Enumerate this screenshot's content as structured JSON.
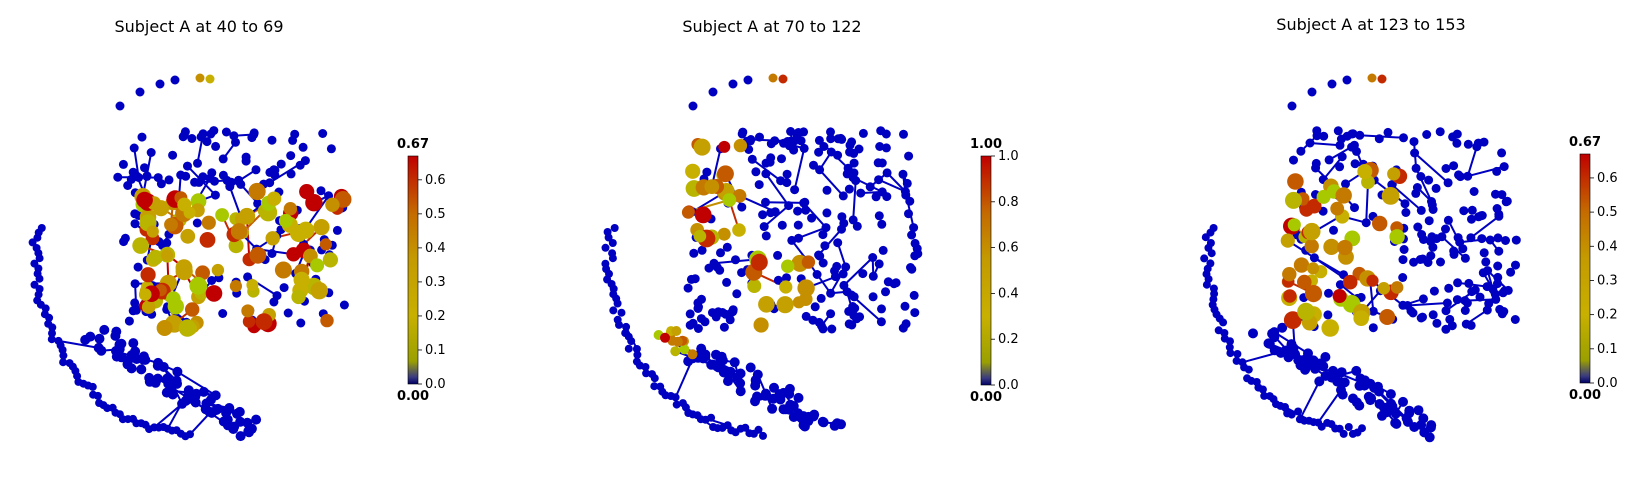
{
  "colors": {
    "background": "#ffffff",
    "low_node": "#0000c0",
    "colormap": [
      "#000066",
      "#8f9f00",
      "#c8b400",
      "#c28a00",
      "#c44a00",
      "#c00000"
    ]
  },
  "panels": [
    {
      "title": "Subject A at 40 to 69",
      "colorbar": {
        "max_label": "0.67",
        "min_label": "0.00",
        "ticks": [
          "0.0",
          "0.1",
          "0.2",
          "0.3",
          "0.4",
          "0.5",
          "0.6"
        ],
        "tick_values": [
          0,
          0.1,
          0.2,
          0.3,
          0.4,
          0.5,
          0.6
        ],
        "vmax": 0.67
      }
    },
    {
      "title": "Subject A at 70 to 122",
      "colorbar": {
        "max_label": "1.00",
        "min_label": "0.00",
        "ticks": [
          "0.0",
          "0.2",
          "0.4",
          "0.6",
          "0.8",
          "1.0"
        ],
        "tick_values": [
          0,
          0.2,
          0.4,
          0.6,
          0.8,
          1.0
        ],
        "vmax": 1.0
      }
    },
    {
      "title": "Subject A at 123 to 153",
      "colorbar": {
        "max_label": "0.67",
        "min_label": "0.00",
        "ticks": [
          "0.0",
          "0.1",
          "0.2",
          "0.3",
          "0.4",
          "0.5",
          "0.6"
        ],
        "tick_values": [
          0,
          0.1,
          0.2,
          0.3,
          0.4,
          0.5,
          0.6
        ],
        "vmax": 0.67
      }
    }
  ]
}
